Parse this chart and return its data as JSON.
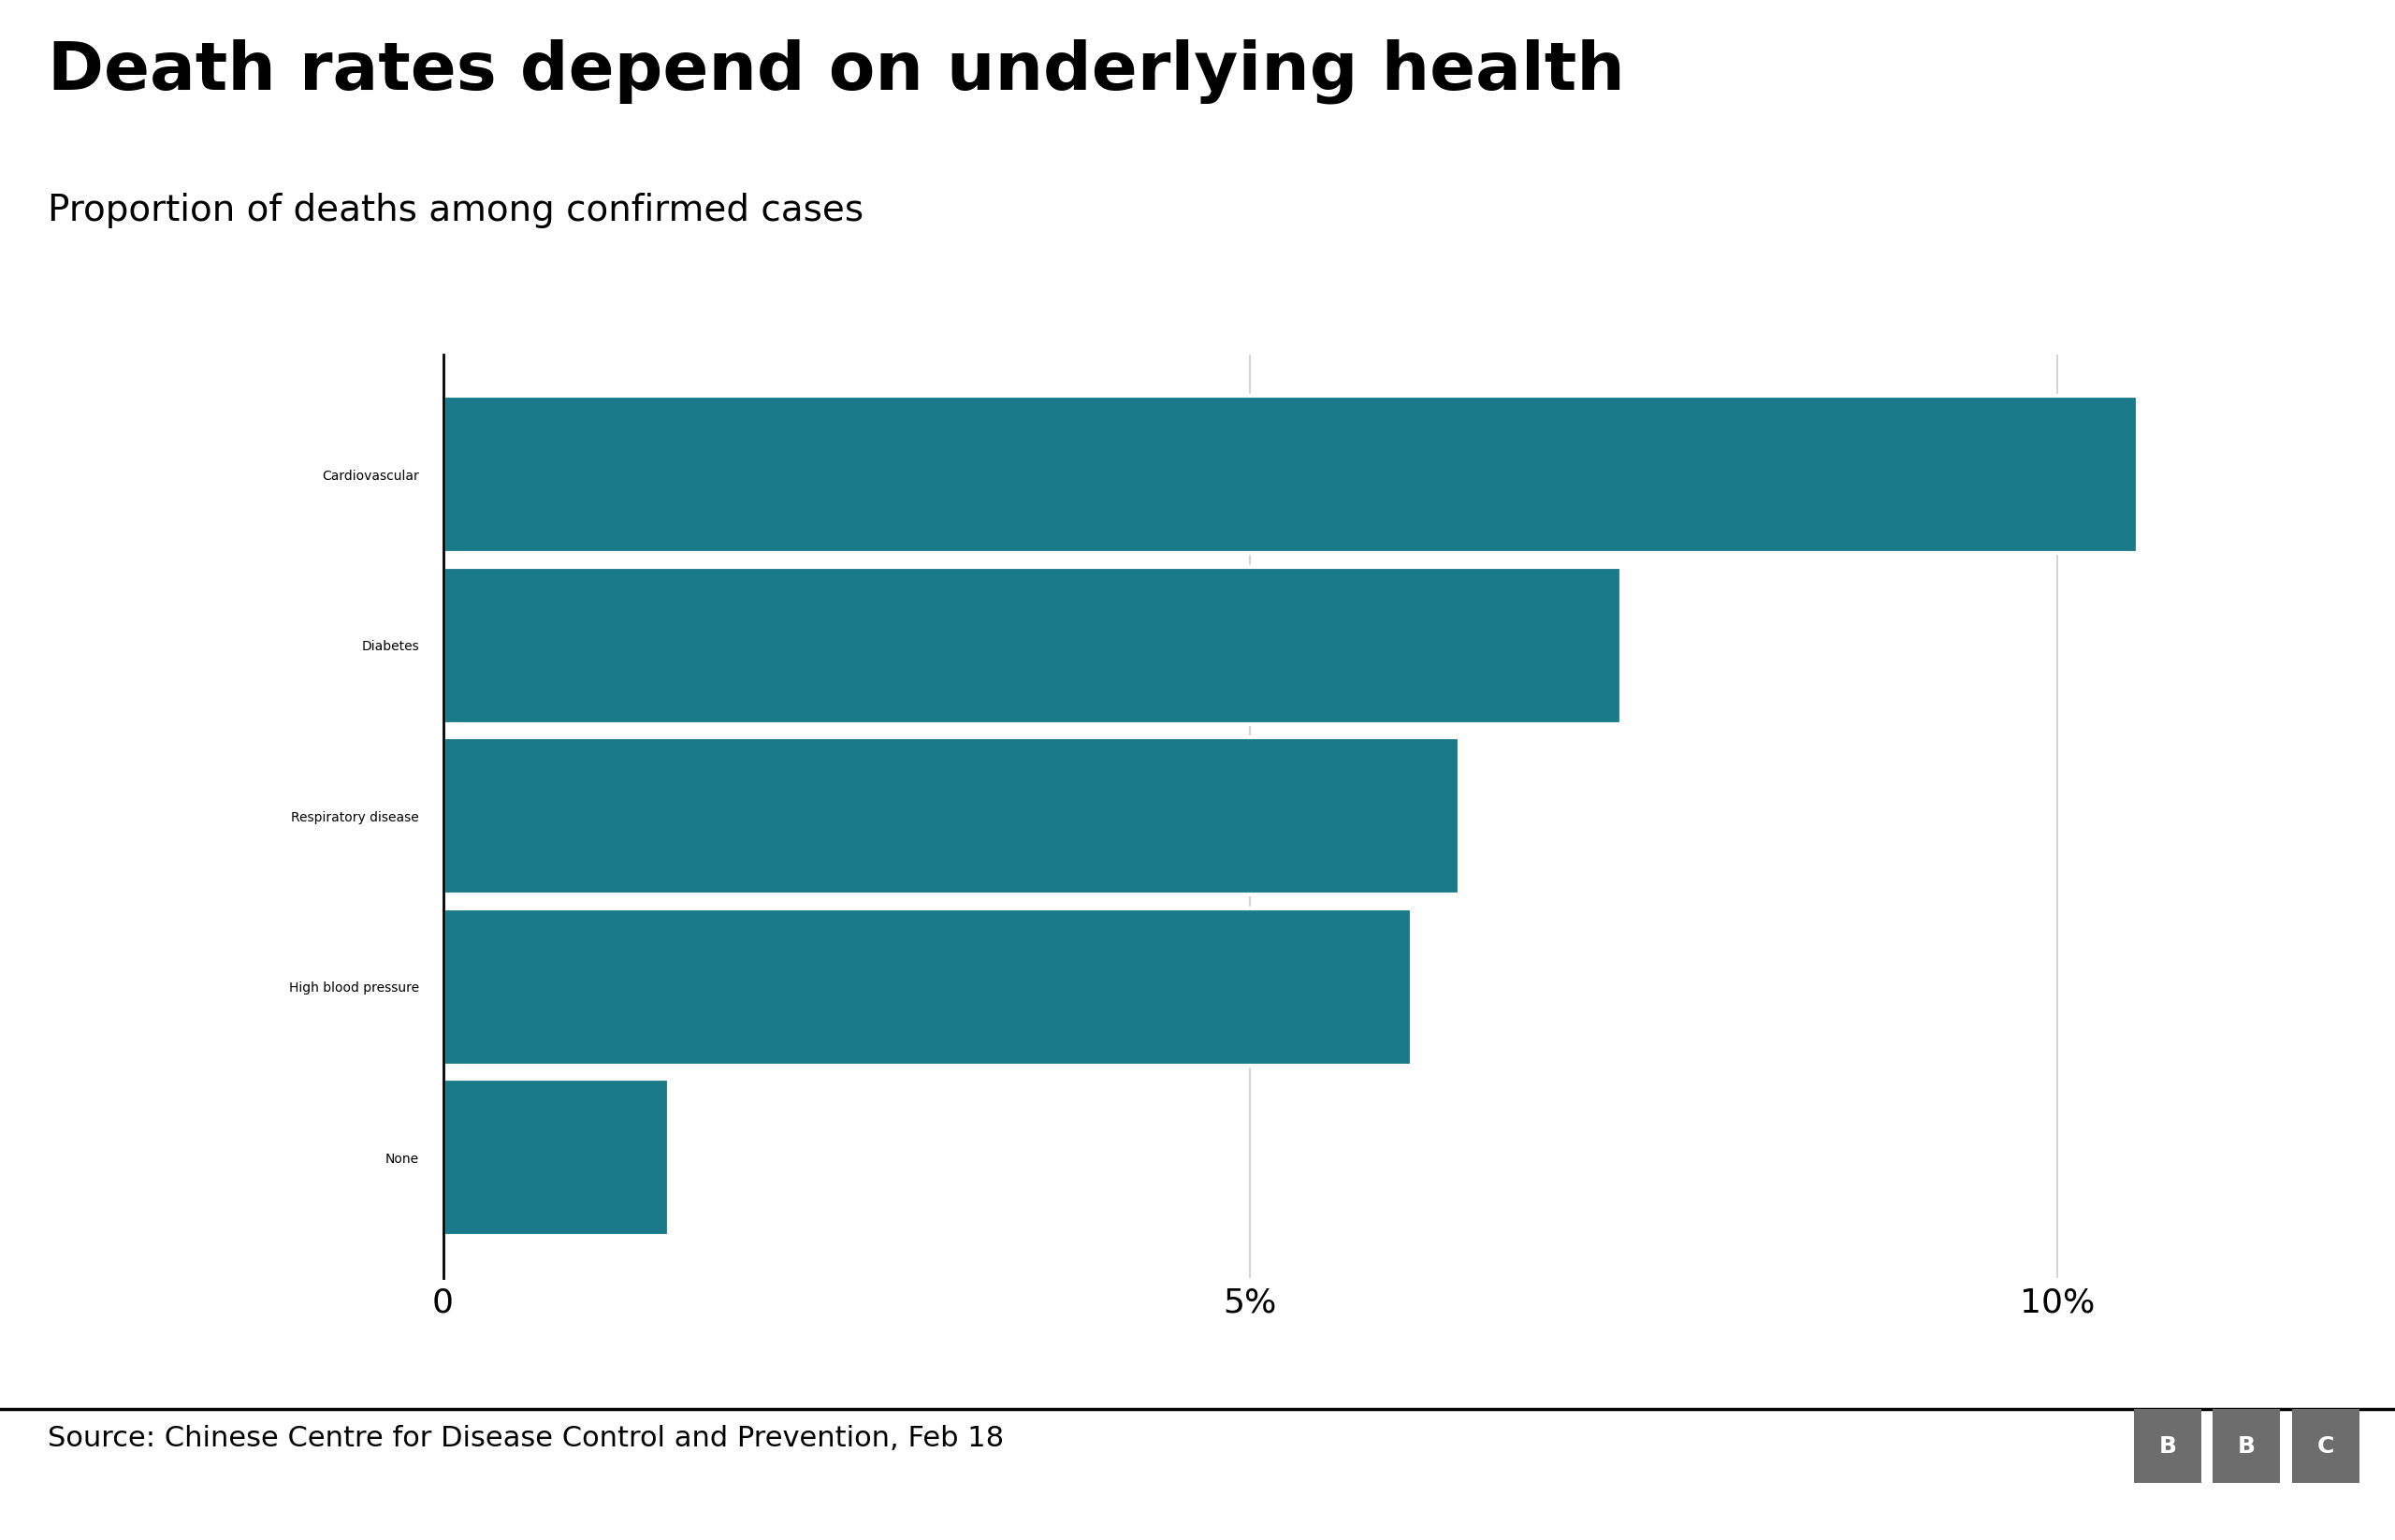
{
  "title": "Death rates depend on underlying health",
  "subtitle": "Proportion of deaths among confirmed cases",
  "categories": [
    "Cardiovascular",
    "Diabetes",
    "Respiratory disease",
    "High blood pressure",
    "None"
  ],
  "values": [
    10.5,
    7.3,
    6.3,
    6.0,
    1.4
  ],
  "bar_color": "#1a7a8a",
  "background_color": "#ffffff",
  "xticks": [
    0,
    5,
    10
  ],
  "xtick_labels": [
    "0",
    "5%",
    "10%"
  ],
  "xlim": [
    0,
    11.5
  ],
  "source_text": "Source: Chinese Centre for Disease Control and Prevention, Feb 18",
  "bbc_logo_color": "#6d6d6d",
  "title_fontsize": 52,
  "subtitle_fontsize": 28,
  "category_fontsize": 26,
  "xtick_fontsize": 26,
  "source_fontsize": 22
}
